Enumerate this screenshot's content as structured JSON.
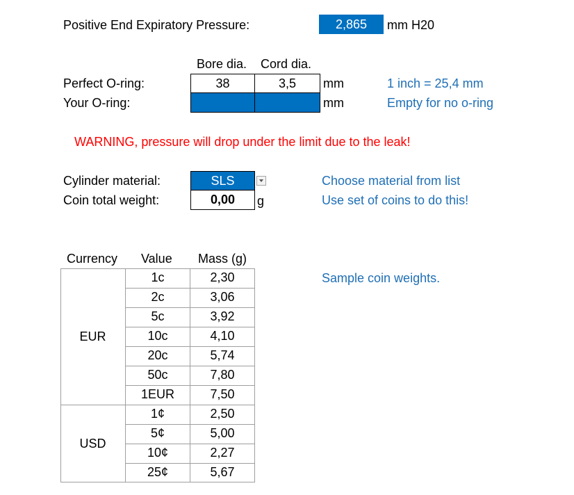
{
  "peep": {
    "label": "Positive End Expiratory Pressure:",
    "value": "2,865",
    "unit": "mm H20"
  },
  "oring": {
    "headers": {
      "bore": "Bore dia.",
      "cord": "Cord dia."
    },
    "perfect": {
      "label": "Perfect O-ring:",
      "bore": "38",
      "cord": "3,5",
      "unit": "mm"
    },
    "yours": {
      "label": "Your O-ring:",
      "bore": "",
      "cord": "",
      "unit": "mm"
    },
    "notes": {
      "inch": "1 inch = 25,4 mm",
      "empty": "Empty for no o-ring"
    }
  },
  "warning": "WARNING, pressure will drop under the limit due to the leak!",
  "cylinder": {
    "label": "Cylinder material:",
    "value": "SLS",
    "hint": "Choose material from list"
  },
  "coin": {
    "label": "Coin total weight:",
    "value": "0,00",
    "unit": "g",
    "hint": "Use set of coins to do this!"
  },
  "coin_table": {
    "headers": {
      "currency": "Currency",
      "value": "Value",
      "mass": "Mass (g)"
    },
    "note": "Sample coin weights.",
    "groups": [
      {
        "currency": "EUR",
        "rows": [
          {
            "value": "1c",
            "mass": "2,30"
          },
          {
            "value": "2c",
            "mass": "3,06"
          },
          {
            "value": "5c",
            "mass": "3,92"
          },
          {
            "value": "10c",
            "mass": "4,10"
          },
          {
            "value": "20c",
            "mass": "5,74"
          },
          {
            "value": "50c",
            "mass": "7,80"
          },
          {
            "value": "1EUR",
            "mass": "7,50"
          }
        ]
      },
      {
        "currency": "USD",
        "rows": [
          {
            "value": "1¢",
            "mass": "2,50"
          },
          {
            "value": "5¢",
            "mass": "5,00"
          },
          {
            "value": "10¢",
            "mass": "2,27"
          },
          {
            "value": "25¢",
            "mass": "5,67"
          }
        ]
      }
    ]
  }
}
